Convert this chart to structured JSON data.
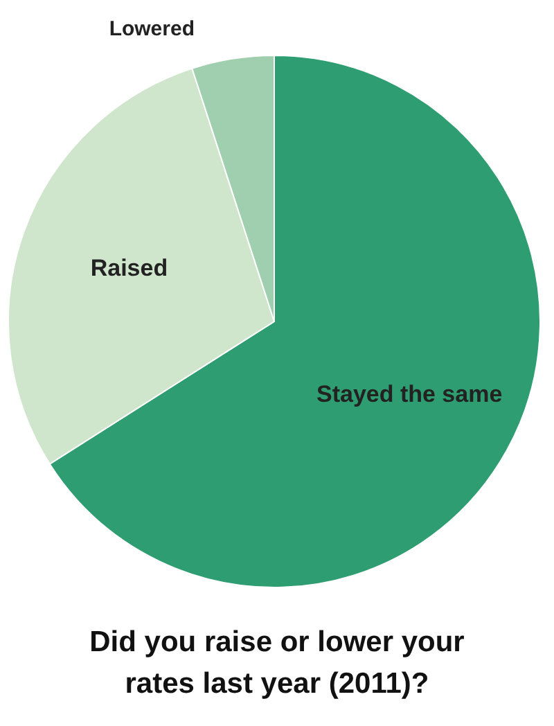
{
  "chart_data": {
    "type": "pie",
    "title": "Did you raise or lower your rates last year (2011)?",
    "categories": [
      "Stayed the same",
      "Raised",
      "Lowered"
    ],
    "values": [
      66,
      29,
      5
    ],
    "colors": [
      "#2e9e72",
      "#cfe6cc",
      "#9fcfae"
    ]
  }
}
